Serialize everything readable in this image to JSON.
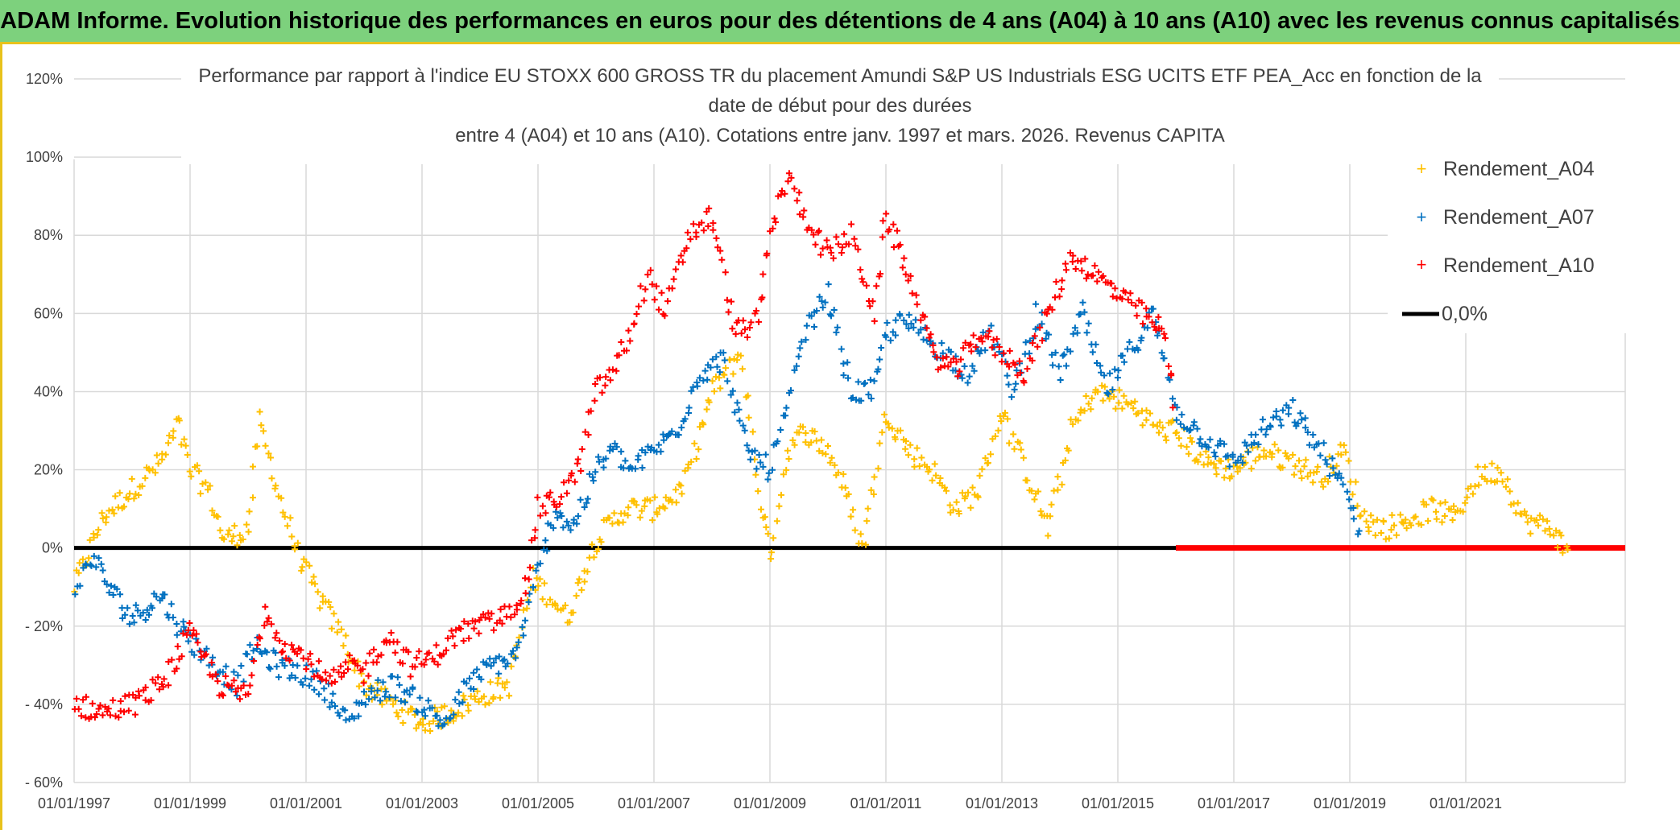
{
  "header": {
    "title": "ADAM Informe. Evolution historique des performances en euros pour des détentions de 4 ans (A04) à 10 ans (A10) avec les revenus connus capitalisés"
  },
  "chart_data": {
    "type": "scatter",
    "title_lines": [
      "Performance par rapport à l'indice EU STOXX 600 GROSS TR  du placement Amundi S&P US Industrials ESG UCITS ETF PEA_Acc en fonction de la",
      "date de début pour des durées",
      "entre 4 (A04) et 10 ans (A10). Cotations entre janv. 1997 et mars. 2026. Revenus CAPITA"
    ],
    "x_range": [
      1997.0,
      2023.75
    ],
    "ylim": [
      -60,
      120
    ],
    "y_ticks": [
      120,
      100,
      80,
      60,
      40,
      20,
      0,
      -20,
      -40,
      -60
    ],
    "y_tick_labels": [
      "120%",
      "100%",
      "80%",
      "60%",
      "40%",
      "20%",
      "0%",
      "- 20%",
      "- 40%",
      "- 60%"
    ],
    "x_tick_labels": [
      "01/01/1997",
      "01/01/1999",
      "01/01/2001",
      "01/01/2003",
      "01/01/2005",
      "01/01/2007",
      "01/01/2009",
      "01/01/2011",
      "01/01/2013",
      "01/01/2015",
      "01/01/2017",
      "01/01/2019",
      "01/01/2021"
    ],
    "x_tick_years": [
      1997,
      1999,
      2001,
      2003,
      2005,
      2007,
      2009,
      2011,
      2013,
      2015,
      2017,
      2019,
      2021
    ],
    "series": [
      {
        "name": "Rendement_A04",
        "color": "#ffc000",
        "x": [
          1997.0,
          1997.5,
          1998.0,
          1998.5,
          1998.8,
          1999.0,
          1999.3,
          1999.6,
          2000.0,
          2000.2,
          2000.6,
          2000.9,
          2001.2,
          2001.6,
          2002.0,
          2002.5,
          2003.0,
          2003.5,
          2004.0,
          2004.5,
          2004.9,
          2005.2,
          2005.5,
          2006.0,
          2006.5,
          2007.0,
          2007.5,
          2008.0,
          2008.5,
          2008.8,
          2009.0,
          2009.3,
          2009.6,
          2010.0,
          2010.3,
          2010.6,
          2011.0,
          2011.4,
          2011.8,
          2012.2,
          2012.6,
          2013.0,
          2013.4,
          2013.8,
          2014.2,
          2014.6,
          2015.0,
          2015.4,
          2015.7,
          2016.0,
          2016.5,
          2017.0,
          2017.5,
          2018.0,
          2018.5,
          2018.9,
          2019.2,
          2019.6,
          2020.0,
          2020.4,
          2020.8,
          2021.2,
          2021.6,
          2022.0,
          2022.5,
          2022.8
        ],
        "y": [
          -10,
          8,
          15,
          22,
          32,
          20,
          15,
          2,
          5,
          32,
          10,
          -3,
          -12,
          -22,
          -35,
          -40,
          -45,
          -42,
          -38,
          -35,
          -8,
          -12,
          -18,
          2,
          10,
          10,
          15,
          40,
          50,
          15,
          -2,
          25,
          30,
          25,
          15,
          0,
          35,
          25,
          20,
          10,
          15,
          35,
          20,
          5,
          30,
          40,
          38,
          35,
          30,
          30,
          22,
          20,
          25,
          22,
          18,
          25,
          8,
          5,
          7,
          10,
          8,
          18,
          20,
          7,
          5,
          -3
        ],
        "xe": 0.18,
        "ye": 3
      },
      {
        "name": "Rendement_A07",
        "color": "#0070c0",
        "x": [
          1997.0,
          1997.3,
          1997.6,
          1998.0,
          1998.5,
          1998.9,
          1999.3,
          1999.8,
          2000.1,
          2000.5,
          2000.9,
          2001.3,
          2001.7,
          2002.0,
          2002.5,
          2003.0,
          2003.4,
          2003.8,
          2004.2,
          2004.6,
          2004.9,
          2005.3,
          2005.6,
          2006.0,
          2006.3,
          2006.6,
          2007.0,
          2007.4,
          2007.8,
          2008.2,
          2008.6,
          2009.0,
          2009.3,
          2009.6,
          2010.0,
          2010.4,
          2010.8,
          2011.0,
          2011.3,
          2011.6,
          2012.0,
          2012.4,
          2012.8,
          2013.2,
          2013.6,
          2014.0,
          2014.4,
          2014.8,
          2015.2,
          2015.6,
          2016.0,
          2016.5,
          2017.0,
          2017.5,
          2018.0,
          2018.5,
          2018.9,
          2019.2
        ],
        "y": [
          -12,
          -2,
          -10,
          -18,
          -12,
          -22,
          -28,
          -35,
          -25,
          -30,
          -32,
          -35,
          -45,
          -38,
          -35,
          -40,
          -45,
          -35,
          -30,
          -28,
          -12,
          10,
          5,
          20,
          25,
          20,
          25,
          30,
          45,
          48,
          25,
          20,
          35,
          55,
          65,
          40,
          40,
          55,
          58,
          55,
          50,
          45,
          55,
          40,
          60,
          45,
          60,
          40,
          50,
          60,
          35,
          28,
          22,
          30,
          35,
          25,
          15,
          3
        ],
        "xe": 0.18,
        "ye": 3
      },
      {
        "name": "Rendement_A10",
        "color": "#ff0000",
        "x": [
          1997.0,
          1997.5,
          1998.0,
          1998.5,
          1999.0,
          1999.5,
          2000.0,
          2000.3,
          2000.6,
          2001.0,
          2001.4,
          2001.8,
          2002.0,
          2002.4,
          2002.8,
          2003.2,
          2003.6,
          2004.0,
          2004.4,
          2004.8,
          2005.0,
          2005.3,
          2005.7,
          2006.0,
          2006.3,
          2006.6,
          2006.9,
          2007.2,
          2007.6,
          2008.0,
          2008.4,
          2008.8,
          2009.0,
          2009.3,
          2009.6,
          2010.0,
          2010.4,
          2010.8,
          2011.0,
          2011.4,
          2011.8,
          2012.2,
          2012.6,
          2013.0,
          2013.4,
          2013.8,
          2014.2,
          2014.6,
          2015.0,
          2015.4,
          2015.8,
          2016.0
        ],
        "y": [
          -40,
          -42,
          -40,
          -35,
          -22,
          -35,
          -38,
          -15,
          -25,
          -28,
          -35,
          -30,
          -32,
          -22,
          -30,
          -28,
          -22,
          -20,
          -18,
          -10,
          10,
          12,
          20,
          40,
          45,
          55,
          70,
          60,
          80,
          85,
          55,
          58,
          80,
          95,
          85,
          75,
          80,
          60,
          85,
          70,
          50,
          45,
          55,
          50,
          45,
          60,
          75,
          70,
          65,
          60,
          55,
          35
        ],
        "xe": 0.18,
        "ye": 3
      }
    ],
    "a10_zero_line": {
      "x_start": 2016.0,
      "x_end": 2023.75,
      "y": 0
    },
    "zero_line": {
      "x_start": 1997.0,
      "x_end": 2016.0,
      "y": 0
    },
    "legend": {
      "position": "top-right",
      "items": [
        {
          "label": "Rendement_A04",
          "color": "#ffc000",
          "marker": "plus"
        },
        {
          "label": "Rendement_A07",
          "color": "#0070c0",
          "marker": "plus"
        },
        {
          "label": "Rendement_A10",
          "color": "#ff0000",
          "marker": "plus"
        },
        {
          "label": "0,0%",
          "color": "#000000",
          "marker": "line"
        }
      ]
    }
  }
}
